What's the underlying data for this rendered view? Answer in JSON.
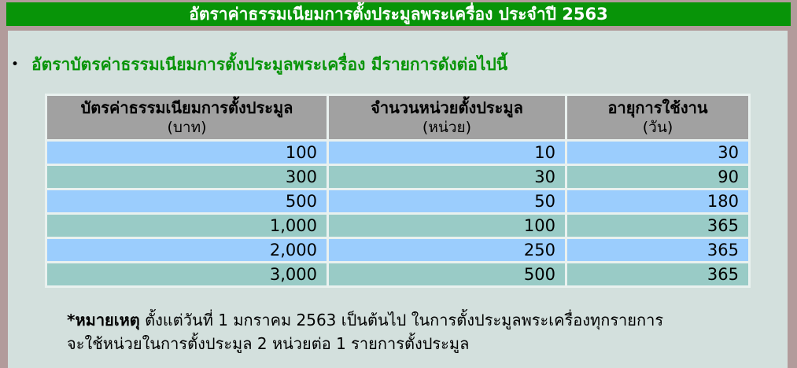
{
  "page": {
    "title": "อัตราค่าธรรมเนียมการตั้งประมูลพระเครื่อง ประจำปี 2563",
    "bullet": "•",
    "intro": "อัตราบัตรค่าธรรมเนียมการตั้งประมูลพระเครื่อง มีรายการดังต่อไปนี้"
  },
  "table": {
    "columns": [
      {
        "label": "บัตรค่าธรรมเนียมการตั้งประมูล",
        "unit": "(บาท)"
      },
      {
        "label": "จำนวนหน่วยตั้งประมูล",
        "unit": "(หน่วย)"
      },
      {
        "label": "อายุการใช้งาน",
        "unit": "(วัน)"
      }
    ],
    "rows": [
      [
        "100",
        "10",
        "30"
      ],
      [
        "300",
        "30",
        "90"
      ],
      [
        "500",
        "50",
        "180"
      ],
      [
        "1,000",
        "100",
        "365"
      ],
      [
        "2,000",
        "250",
        "365"
      ],
      [
        "3,000",
        "500",
        "365"
      ]
    ]
  },
  "note": {
    "prefix": "*หมายเหตุ",
    "line1": " ตั้งแต่วันที่ 1 มกราคม 2563 เป็นต้นไป ในการตั้งประมูลพระเครื่องทุกรายการ",
    "line2": "จะใช้หน่วยในการตั้งประมูล 2 หน่วยต่อ 1 รายการตั้งประมูล"
  },
  "colors": {
    "title_bar_green": "#089408",
    "frame_mauve": "#b29b9b",
    "panel_teal_gray": "#d3e0dd",
    "table_header_gray": "#a1a1a1",
    "row_blue": "#9bcdfd",
    "row_teal": "#99cbc6",
    "intro_text_green": "#089408",
    "title_text_white": "#ffffff"
  }
}
